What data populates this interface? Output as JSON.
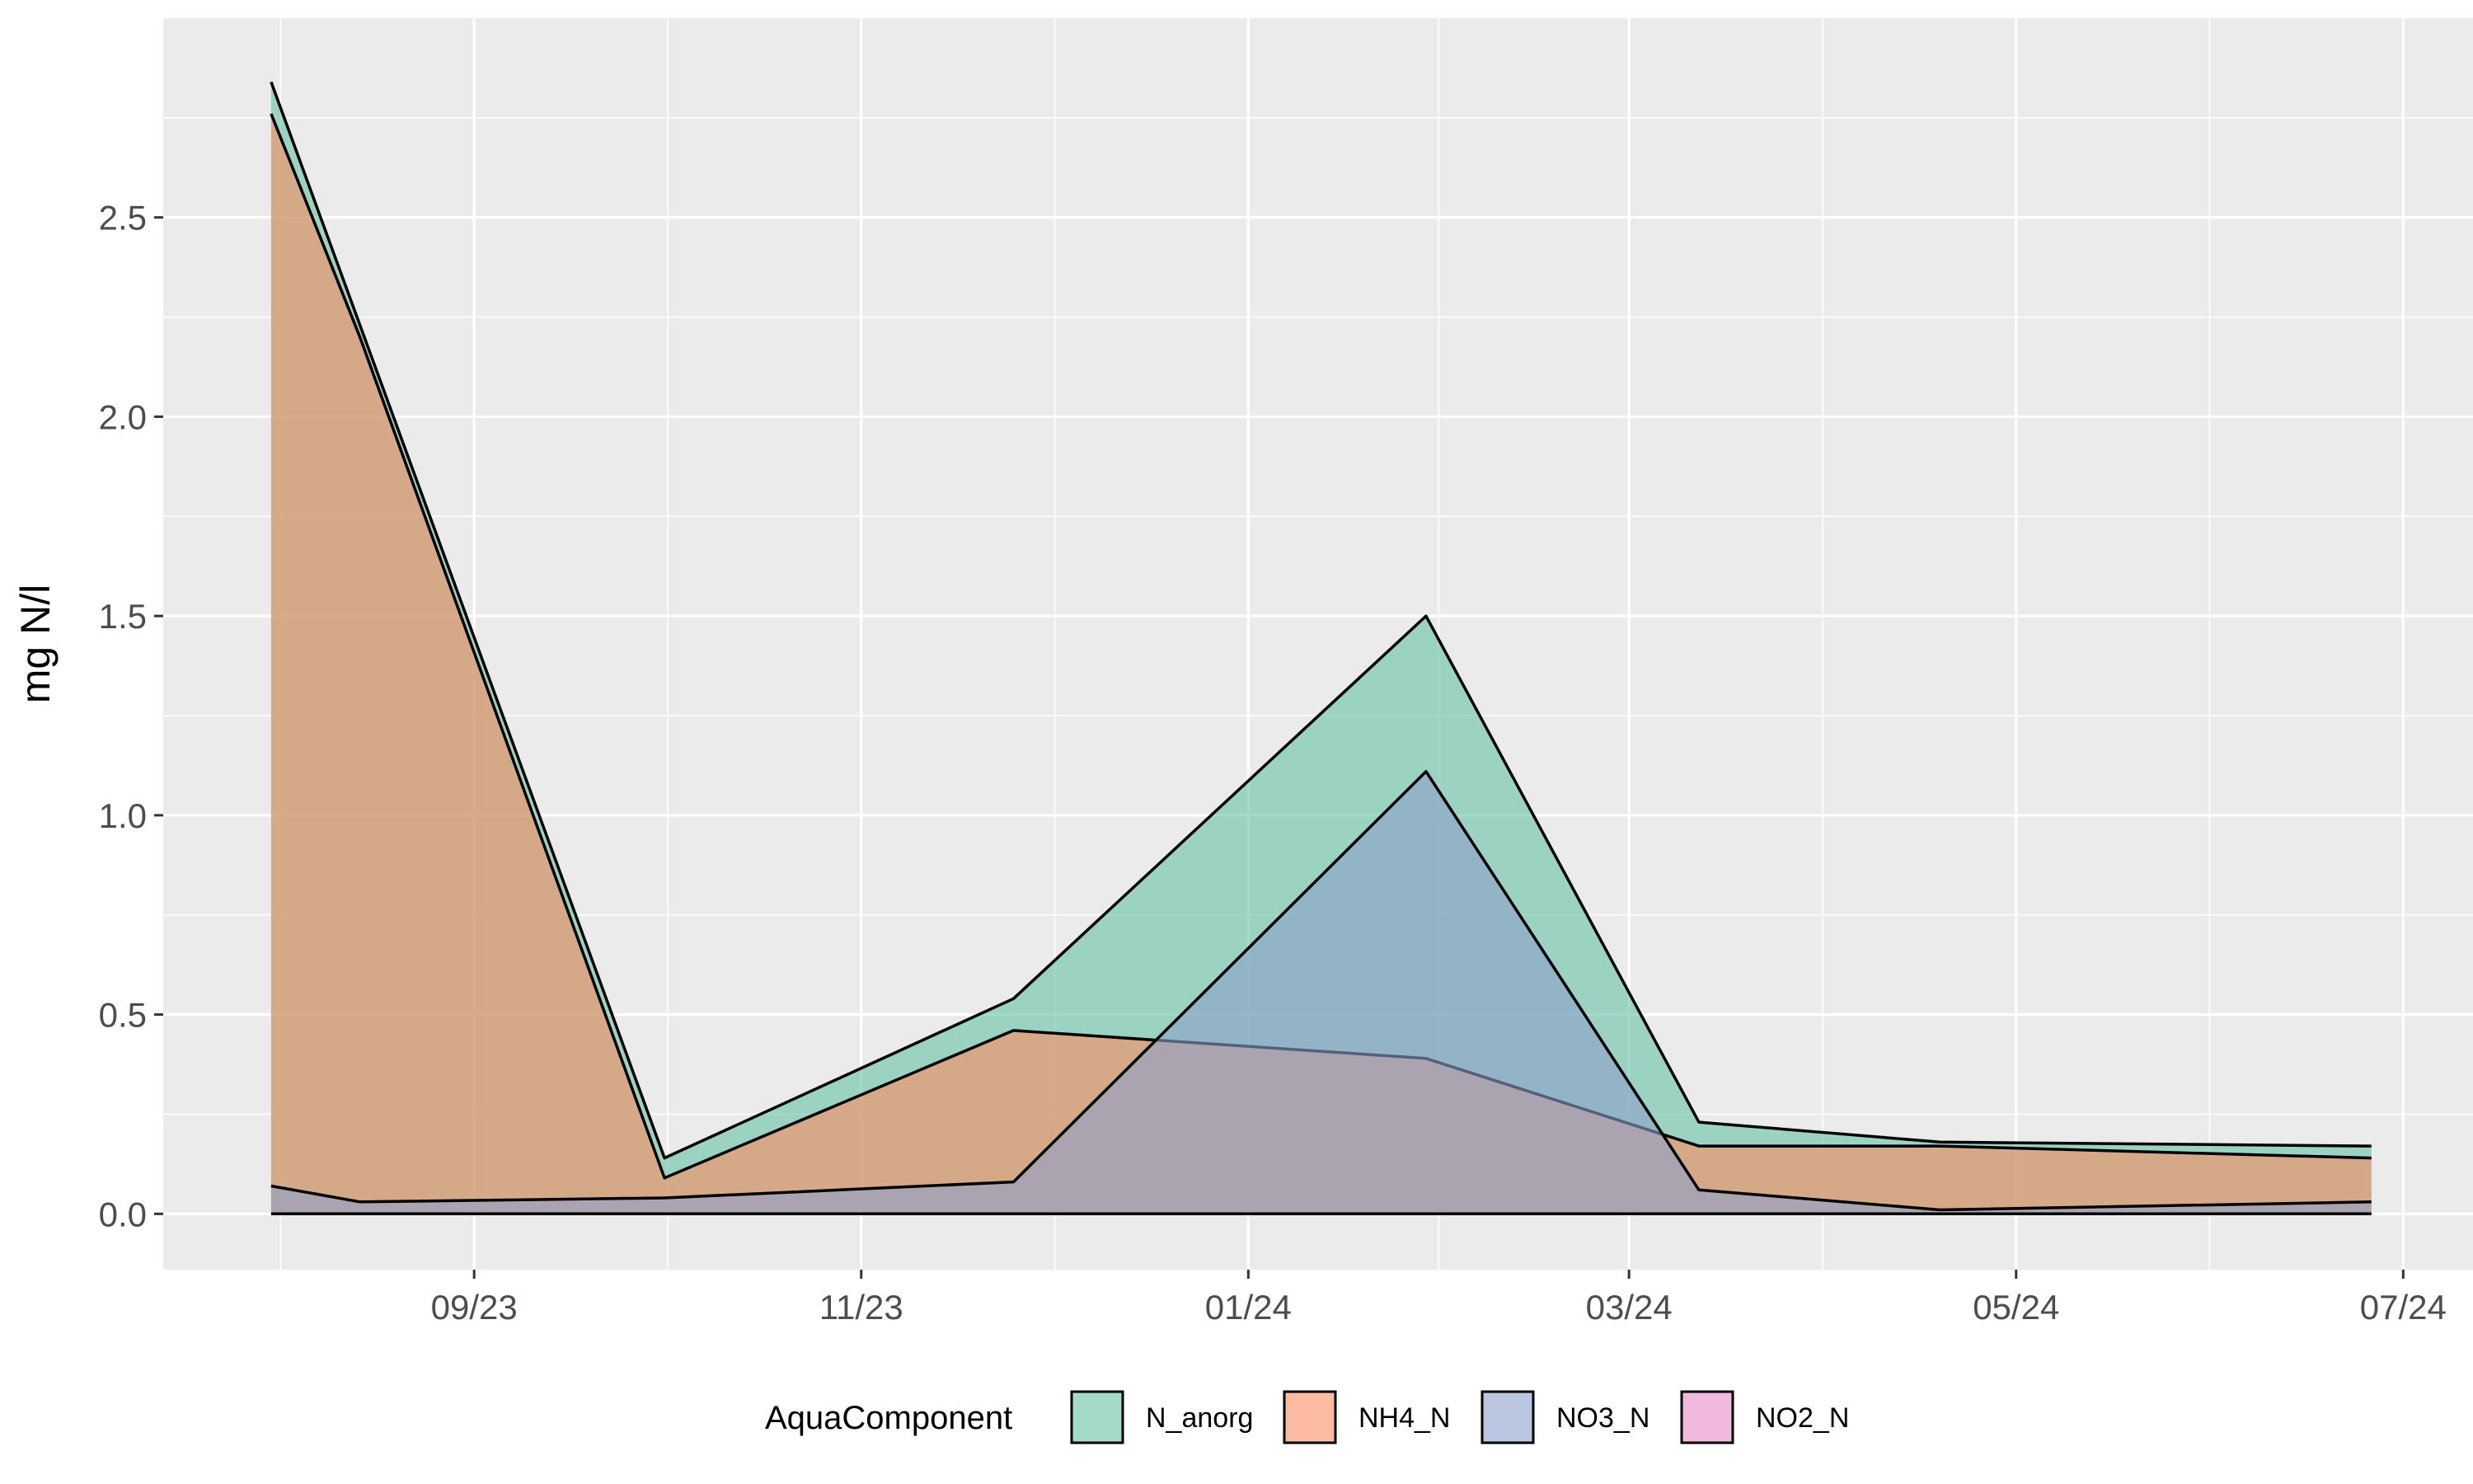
{
  "chart_data": {
    "type": "area",
    "xlabel": "",
    "ylabel": "mg N/l",
    "ylim": [
      -0.14,
      3.0
    ],
    "xlim": [
      "2023-07-14",
      "2024-07-12"
    ],
    "x_ticks": [
      {
        "date": "2023-09-01",
        "label": "09/23"
      },
      {
        "date": "2023-11-01",
        "label": "11/23"
      },
      {
        "date": "2024-01-01",
        "label": "01/24"
      },
      {
        "date": "2024-03-01",
        "label": "03/24"
      },
      {
        "date": "2024-05-01",
        "label": "05/24"
      },
      {
        "date": "2024-07-01",
        "label": "07/24"
      }
    ],
    "y_ticks": [
      0.0,
      0.5,
      1.0,
      1.5,
      2.0,
      2.5
    ],
    "y_tick_labels": [
      "0.0",
      "0.5",
      "1.0",
      "1.5",
      "2.0",
      "2.5"
    ],
    "grid": true,
    "legend": {
      "title": "AquaComponent",
      "position": "bottom"
    },
    "x": [
      "2023-07-31",
      "2023-08-14",
      "2023-10-01",
      "2023-11-25",
      "2024-01-29",
      "2024-03-12",
      "2024-04-19",
      "2024-06-26"
    ],
    "series": [
      {
        "name": "N_anorg",
        "color": "#66C2A5",
        "values": [
          2.84,
          2.23,
          0.14,
          0.54,
          1.5,
          0.23,
          0.18,
          0.17
        ]
      },
      {
        "name": "NH4_N",
        "color": "#FC8D62",
        "values": [
          2.76,
          2.2,
          0.09,
          0.46,
          0.39,
          0.17,
          0.17,
          0.14
        ]
      },
      {
        "name": "NO3_N",
        "color": "#8DA0CB",
        "values": [
          0.07,
          0.03,
          0.04,
          0.08,
          1.11,
          0.06,
          0.01,
          0.03
        ]
      },
      {
        "name": "NO2_N",
        "color": "#E78AC3",
        "values": [
          0.0,
          0.0,
          0.0,
          0.0,
          0.0,
          0.0,
          0.0,
          0.0
        ]
      }
    ]
  }
}
